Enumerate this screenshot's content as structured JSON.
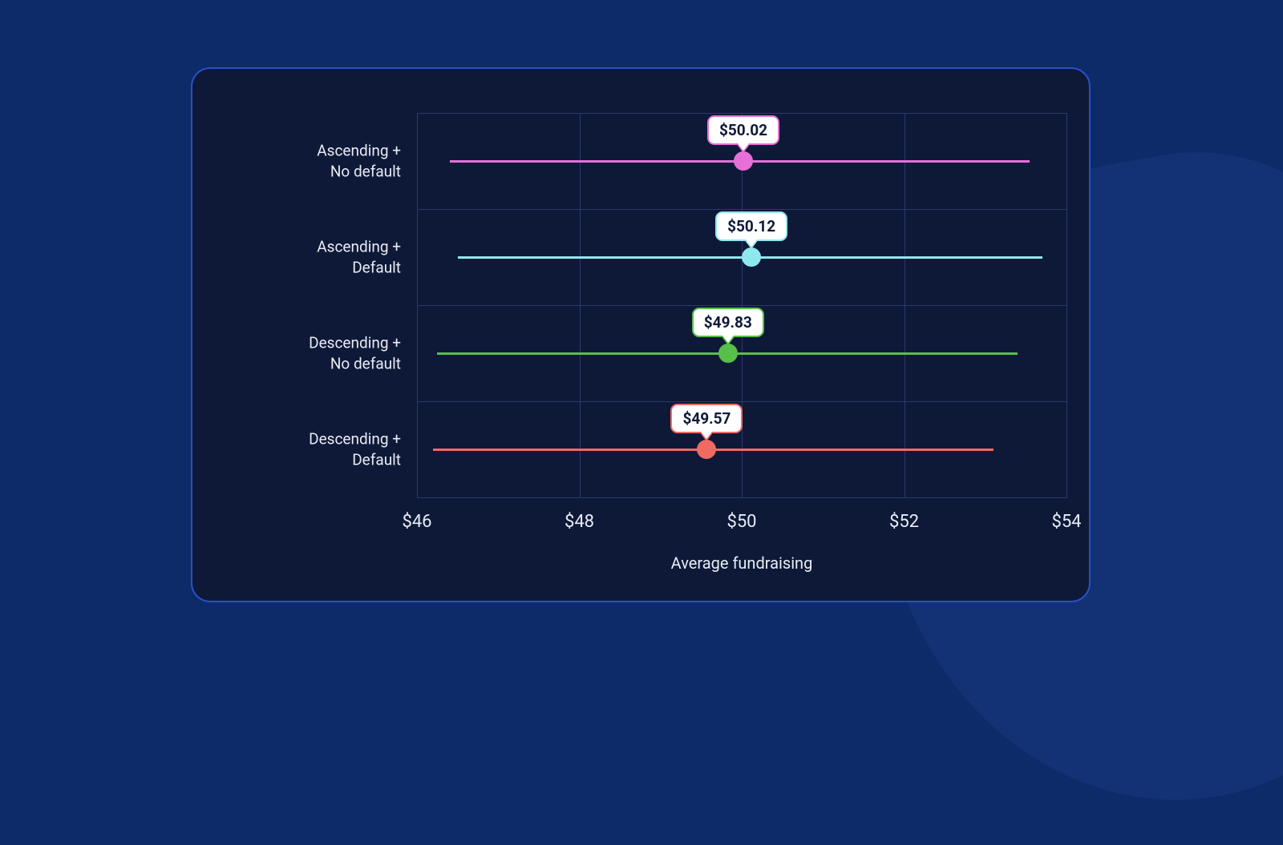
{
  "chart": {
    "type": "dot-whisker",
    "page_background": "#0c2b68",
    "bg_shape_color": "#123275",
    "card_background": "#0e1938",
    "card_border_color": "#2a4fc8",
    "card_border_radius": 24,
    "grid_color": "#2a3a6b",
    "text_color": "#e8ecf4",
    "badge_bg": "#ffffff",
    "badge_text_color": "#0e1938",
    "label_fontsize": 19,
    "tick_fontsize": 22,
    "axis_label_fontsize": 20,
    "badge_fontsize": 19,
    "x_axis": {
      "label": "Average fundraising",
      "min": 46,
      "max": 54,
      "ticks": [
        {
          "value": 46,
          "label": "$46"
        },
        {
          "value": 48,
          "label": "$48"
        },
        {
          "value": 50,
          "label": "$50"
        },
        {
          "value": 52,
          "label": "$52"
        },
        {
          "value": 54,
          "label": "$54"
        }
      ]
    },
    "row_count": 4,
    "series": [
      {
        "label": "Ascending +\nNo default",
        "point": 50.02,
        "badge": "$50.02",
        "low": 46.4,
        "high": 53.55,
        "color": "#e86fd8",
        "point_color": "#e86fd8"
      },
      {
        "label": "Ascending +\nDefault",
        "point": 50.12,
        "badge": "$50.12",
        "low": 46.5,
        "high": 53.7,
        "color": "#8fe8ee",
        "point_color": "#8fe8ee"
      },
      {
        "label": "Descending +\nNo default",
        "point": 49.83,
        "badge": "$49.83",
        "low": 46.25,
        "high": 53.4,
        "color": "#58c048",
        "point_color": "#58c048"
      },
      {
        "label": "Descending +\nDefault",
        "point": 49.57,
        "badge": "$49.57",
        "low": 46.2,
        "high": 53.1,
        "color": "#ef6a63",
        "point_color": "#ef6a63"
      }
    ]
  }
}
